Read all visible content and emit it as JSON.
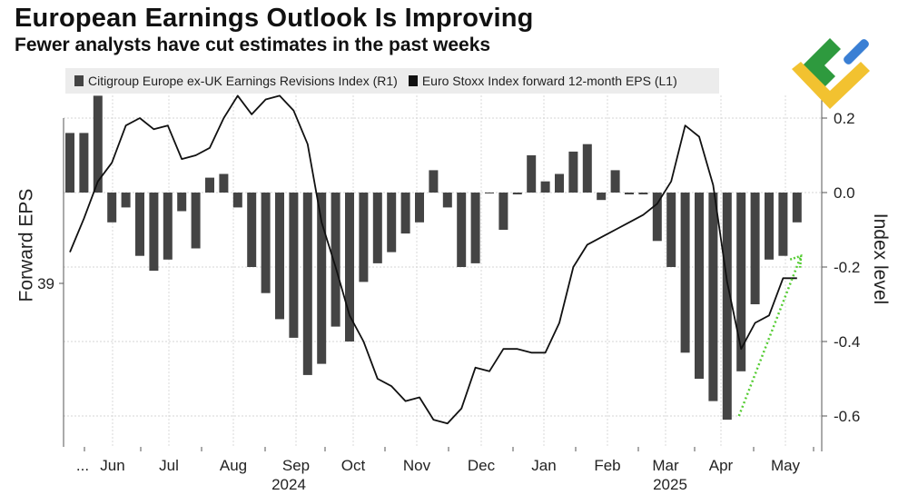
{
  "header": {
    "title": "European Earnings Outlook Is Improving",
    "subtitle": "Fewer analysts have cut estimates in the past weeks"
  },
  "legend": {
    "items": [
      {
        "label": "Citigroup Europe ex-UK Earnings Revisions Index (R1)",
        "color": "#444444"
      },
      {
        "label": "Euro Stoxx Index forward 12-month EPS (L1)",
        "color": "#111111"
      }
    ]
  },
  "logo": {
    "icon": "brand-logo-icon",
    "colors": [
      "#2e9a3e",
      "#f2c230",
      "#3a7fd4"
    ]
  },
  "chart_data": {
    "type": "bar",
    "title": "European Earnings Outlook Is Improving",
    "subtitle": "Fewer analysts have cut estimates in the past weeks",
    "ylabel_left": "Forward EPS",
    "ylabel_right": "Index level",
    "right_axis": {
      "ticks": [
        0.2,
        0.0,
        -0.2,
        -0.4,
        -0.6
      ],
      "tick_labels": [
        "0.2",
        "0.0",
        "-0.2",
        "-0.4",
        "-0.6"
      ],
      "range": [
        -0.68,
        0.26
      ]
    },
    "left_axis": {
      "tick_labels": [
        "39"
      ]
    },
    "x_labels": [
      "...",
      "Jun",
      "Jul",
      "Aug",
      "Sep",
      "Oct",
      "Nov",
      "Dec",
      "Jan",
      "Feb",
      "Mar",
      "Apr",
      "May"
    ],
    "year_labels": [
      "2024",
      "2025"
    ],
    "gridlines": true,
    "legend_position": "top",
    "series": [
      {
        "name": "Citigroup Europe ex-UK Earnings Revisions Index (R1)",
        "type": "bar",
        "axis": "right",
        "color": "#444444",
        "values": [
          0.16,
          0.16,
          0.26,
          -0.08,
          -0.04,
          -0.17,
          -0.21,
          -0.18,
          -0.05,
          -0.15,
          0.04,
          0.05,
          -0.04,
          -0.2,
          -0.27,
          -0.34,
          -0.39,
          -0.49,
          -0.46,
          -0.36,
          -0.4,
          -0.24,
          -0.19,
          -0.16,
          -0.11,
          -0.08,
          0.06,
          -0.04,
          -0.2,
          -0.19,
          0.0,
          -0.1,
          -0.005,
          0.1,
          0.03,
          0.05,
          0.11,
          0.13,
          -0.02,
          0.06,
          -0.005,
          -0.005,
          -0.13,
          -0.2,
          -0.43,
          -0.5,
          -0.56,
          -0.61,
          -0.48,
          -0.3,
          -0.18,
          -0.17,
          -0.08
        ]
      },
      {
        "name": "Euro Stoxx Index forward 12-month EPS (L1)",
        "type": "line",
        "axis": "left",
        "color": "#111111",
        "values": [
          -0.16,
          -0.07,
          0.03,
          0.08,
          0.18,
          0.2,
          0.17,
          0.18,
          0.09,
          0.1,
          0.12,
          0.2,
          0.26,
          0.21,
          0.25,
          0.26,
          0.22,
          0.13,
          -0.08,
          -0.2,
          -0.33,
          -0.4,
          -0.5,
          -0.52,
          -0.56,
          -0.55,
          -0.61,
          -0.62,
          -0.58,
          -0.47,
          -0.48,
          -0.42,
          -0.42,
          -0.43,
          -0.43,
          -0.35,
          -0.2,
          -0.14,
          -0.12,
          -0.1,
          -0.08,
          -0.06,
          -0.03,
          0.03,
          0.18,
          0.15,
          0.02,
          -0.24,
          -0.42,
          -0.35,
          -0.33,
          -0.23,
          -0.23
        ]
      }
    ],
    "annotation": {
      "type": "dotted-arrow",
      "color": "#55cc33",
      "from_index": 47,
      "from_value": -0.6,
      "to_index": 53,
      "to_value": -0.17
    }
  }
}
